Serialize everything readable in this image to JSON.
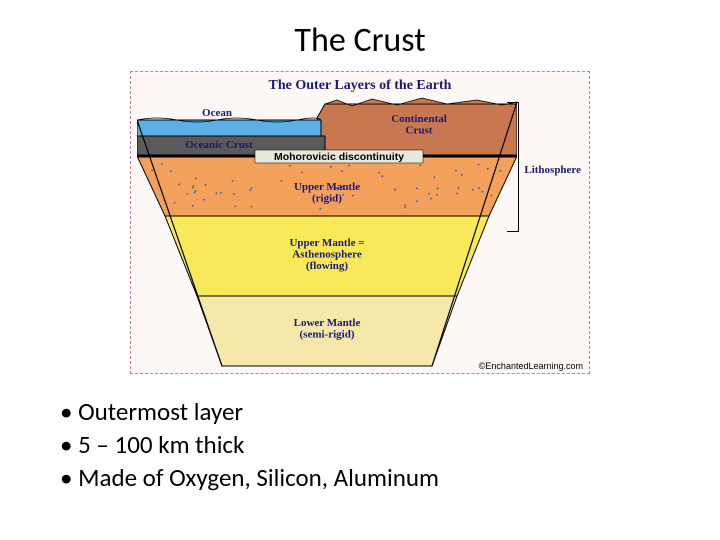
{
  "title": "The Crust",
  "diagram": {
    "title": "The Outer Layers of the Earth",
    "background": "#fdf8f5",
    "border_color": "#c080a0",
    "label_color": "#1a1a70",
    "side_label": "Lithosphere",
    "moho_label": "Mohorovicic discontinuity",
    "labels": {
      "ocean": "Ocean",
      "oceanic_crust": "Oceanic Crust",
      "continental_crust": "Continental\nCrust",
      "upper_mantle_rigid": "Upper Mantle\n(rigid)",
      "asthenosphere": "Upper Mantle =\nAsthenosphere\n(flowing)",
      "lower_mantle": "Lower Mantle\n(semi-rigid)"
    },
    "colors": {
      "ocean": "#5bb0e8",
      "oceanic_crust": "#5a5a5a",
      "continental_crust": "#c87850",
      "moho_line": "#000000",
      "upper_mantle_rigid": "#f3a05a",
      "asthenosphere": "#f8e85a",
      "lower_mantle": "#f5e8a8",
      "dots": "#3060c0"
    },
    "copyright": "©EnchantedLearning.com"
  },
  "bullets": [
    "Outermost layer",
    "5 – 100 km thick",
    "Made of Oxygen, Silicon, Aluminum"
  ]
}
